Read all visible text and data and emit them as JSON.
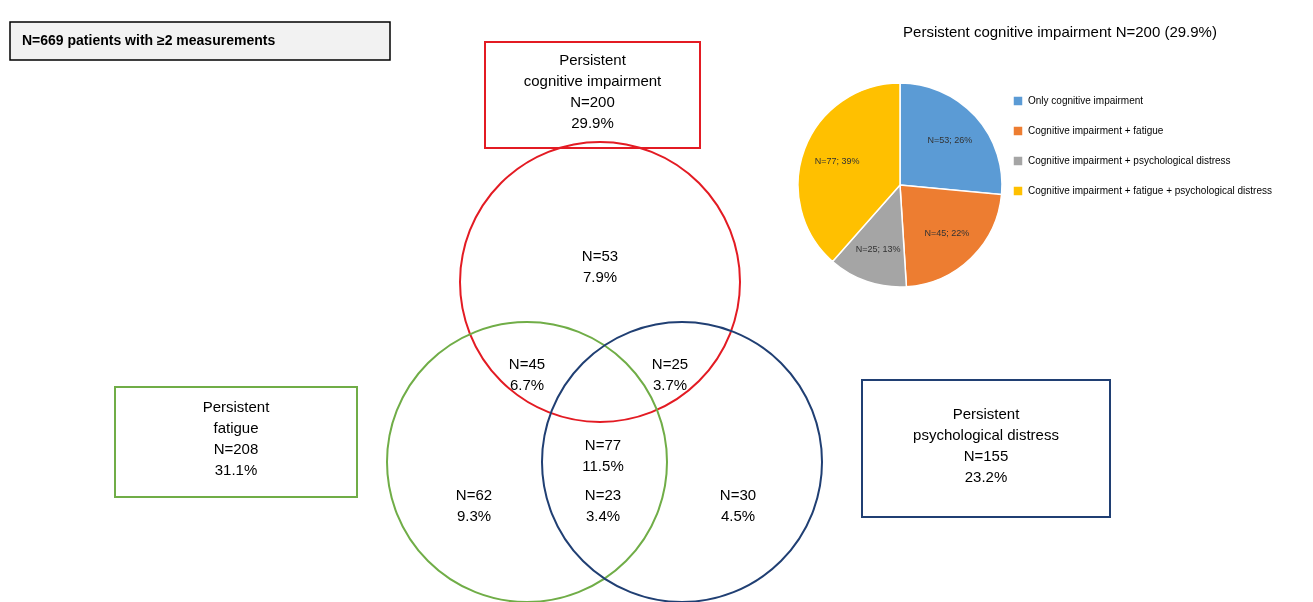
{
  "chart_data": [
    {
      "type": "other",
      "title": "N=669 patients with ≥2 measurements",
      "categories": [
        "Persistent\ncognitive impairment\nN=200\n29.9%",
        "Persistent\nfatigue\nN=208\n31.1%",
        "Persistent\npsychological distress\nN=155\n23.2%"
      ],
      "colors": [
        "#e31b23",
        "#70ad47",
        "#203f73"
      ],
      "annotations": [
        "N=53\n7.9%",
        "N=45\n6.7%",
        "N=25\n3.7%",
        "N=77\n11.5%",
        "N=62\n9.3%",
        "N=23\n3.4%",
        "N=30\n4.5%"
      ]
    },
    {
      "type": "pie",
      "title": "Persistent cognitive impairment N=200 (29.9%)",
      "categories": [
        "Only cognitive impairment",
        "Cognitive impairment + fatigue",
        "Cognitive impairment + psychological distress",
        "Cognitive impairment + fatigue + psychological distress"
      ],
      "values": [
        53,
        45,
        25,
        77
      ],
      "colors": [
        "#5b9bd5",
        "#ed7d31",
        "#a5a5a5",
        "#ffc000"
      ],
      "value_labels": [
        "N=53; 26%",
        "N=45; 22%",
        "N=25; 13%",
        "N=77; 39%"
      ],
      "legend": "right"
    }
  ]
}
